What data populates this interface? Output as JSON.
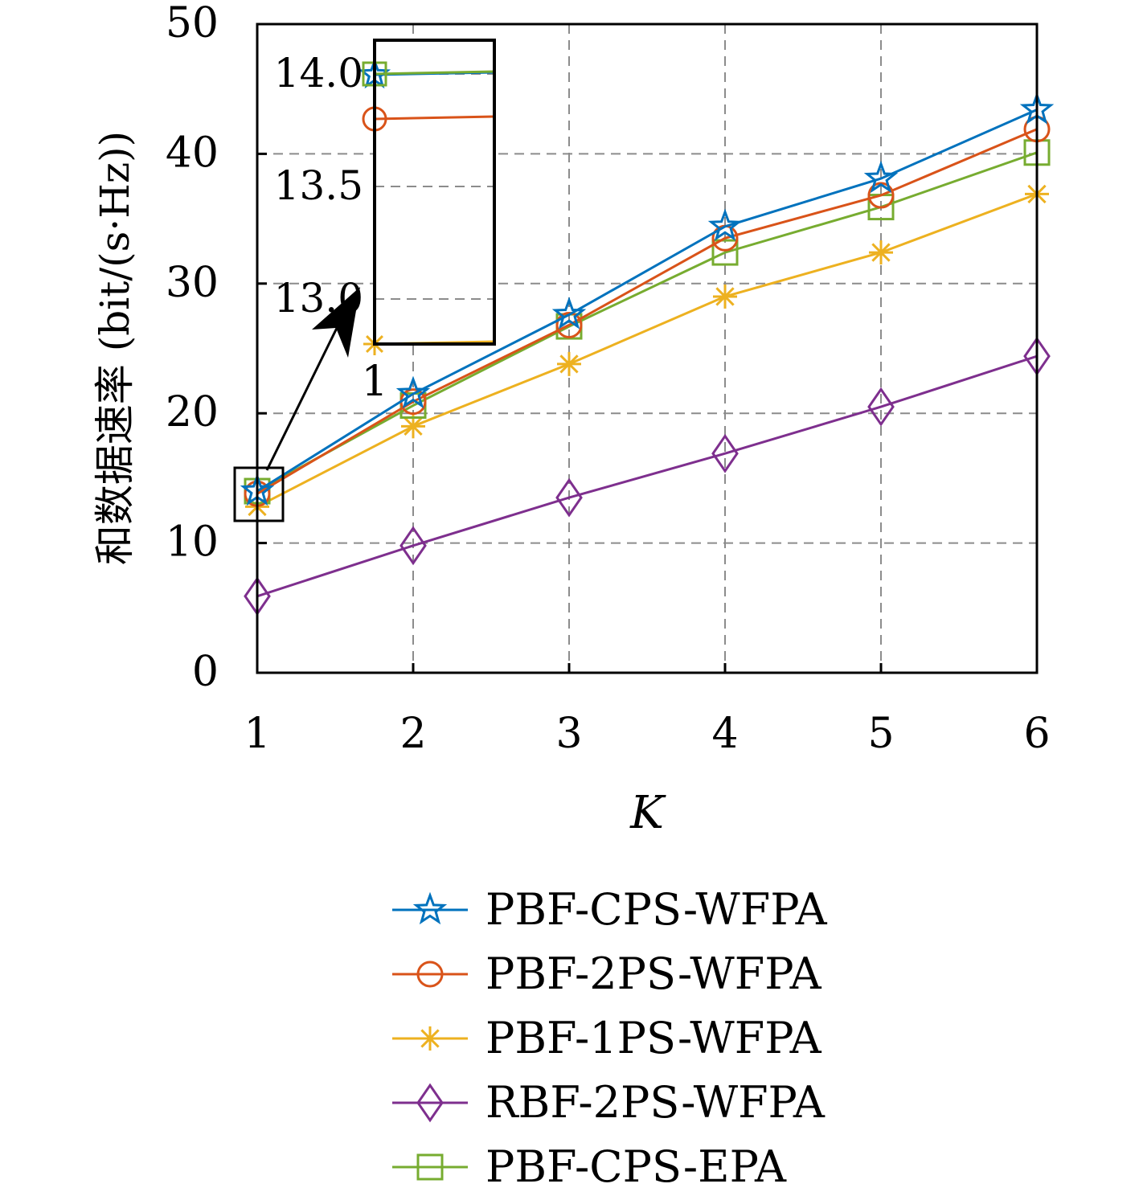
{
  "chart_data": {
    "type": "line",
    "xlabel": "K",
    "ylabel": "和数据速率 (bit/(s·Hz))",
    "x": [
      1,
      2,
      3,
      4,
      5,
      6
    ],
    "xticks": [
      "1",
      "2",
      "3",
      "4",
      "5",
      "6"
    ],
    "yticks": [
      "0",
      "10",
      "20",
      "30",
      "40",
      "50"
    ],
    "xlim": [
      1,
      6
    ],
    "ylim": [
      0,
      50
    ],
    "grid": true,
    "legend_position": "below plot",
    "series": [
      {
        "name": "PBF-CPS-WFPA",
        "color": "#0072BD",
        "marker": "star",
        "values": [
          14.0,
          21.5,
          27.6,
          34.4,
          38.1,
          43.4
        ]
      },
      {
        "name": "PBF-2PS-WFPA",
        "color": "#D95319",
        "marker": "circle",
        "values": [
          13.8,
          20.9,
          26.8,
          33.5,
          36.8,
          41.9
        ]
      },
      {
        "name": "PBF-1PS-WFPA",
        "color": "#EDB120",
        "marker": "asterisk",
        "values": [
          12.8,
          19.0,
          23.8,
          29.0,
          32.4,
          36.9
        ]
      },
      {
        "name": "RBF-2PS-WFPA",
        "color": "#7E2F8E",
        "marker": "diamond",
        "values": [
          5.9,
          9.8,
          13.5,
          16.9,
          20.5,
          24.4
        ]
      },
      {
        "name": "PBF-CPS-EPA",
        "color": "#77AC30",
        "marker": "square",
        "values": [
          14.0,
          20.6,
          26.7,
          32.4,
          35.9,
          40.1
        ]
      }
    ],
    "inset": {
      "yticks": [
        "13.0",
        "13.5",
        "14.0"
      ],
      "ylim": [
        12.8,
        14.15
      ],
      "x_label_visible": "1",
      "values_at_k1": [
        14.0,
        13.8,
        12.8,
        14.0
      ]
    }
  }
}
